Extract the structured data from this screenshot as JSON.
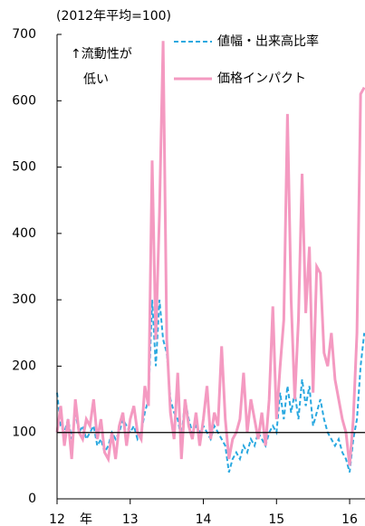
{
  "chart_data": {
    "type": "line",
    "subtitle": "(2012年平均=100)",
    "annotation": [
      "↑流動性が",
      "低い"
    ],
    "x_unit": "年",
    "x": [
      12.0,
      12.05,
      12.1,
      12.15,
      12.2,
      12.25,
      12.3,
      12.35,
      12.4,
      12.45,
      12.5,
      12.55,
      12.6,
      12.65,
      12.7,
      12.75,
      12.8,
      12.85,
      12.9,
      12.95,
      13.0,
      13.05,
      13.1,
      13.15,
      13.2,
      13.25,
      13.3,
      13.35,
      13.4,
      13.45,
      13.5,
      13.55,
      13.6,
      13.65,
      13.7,
      13.75,
      13.8,
      13.85,
      13.9,
      13.95,
      14.0,
      14.05,
      14.1,
      14.15,
      14.2,
      14.25,
      14.3,
      14.35,
      14.4,
      14.45,
      14.5,
      14.55,
      14.6,
      14.65,
      14.7,
      14.75,
      14.8,
      14.85,
      14.9,
      14.95,
      15.0,
      15.05,
      15.1,
      15.15,
      15.2,
      15.25,
      15.3,
      15.35,
      15.4,
      15.45,
      15.5,
      15.55,
      15.6,
      15.65,
      15.7,
      15.75,
      15.8,
      15.85,
      15.9,
      15.95,
      16.0,
      16.05,
      16.1,
      16.15,
      16.2
    ],
    "series": [
      {
        "name": "値幅・出来高比率",
        "color": "#29a8e0",
        "dashed": true,
        "values": [
          160,
          110,
          100,
          120,
          90,
          130,
          100,
          110,
          90,
          100,
          110,
          80,
          90,
          70,
          80,
          100,
          90,
          100,
          120,
          110,
          100,
          110,
          90,
          100,
          130,
          150,
          300,
          200,
          300,
          240,
          220,
          150,
          130,
          120,
          90,
          150,
          120,
          100,
          110,
          100,
          110,
          100,
          90,
          110,
          100,
          90,
          80,
          40,
          60,
          70,
          60,
          80,
          70,
          90,
          80,
          100,
          90,
          80,
          100,
          110,
          100,
          160,
          120,
          170,
          130,
          160,
          120,
          180,
          140,
          170,
          110,
          130,
          150,
          120,
          100,
          90,
          80,
          90,
          70,
          60,
          40,
          90,
          120,
          200,
          250
        ]
      },
      {
        "name": "価格インパクト",
        "color": "#f49ac1",
        "dashed": false,
        "values": [
          100,
          140,
          80,
          120,
          60,
          150,
          100,
          90,
          120,
          110,
          150,
          90,
          120,
          70,
          60,
          100,
          60,
          110,
          130,
          80,
          120,
          140,
          100,
          90,
          170,
          140,
          510,
          240,
          430,
          690,
          240,
          130,
          90,
          190,
          60,
          150,
          110,
          90,
          130,
          80,
          120,
          170,
          90,
          130,
          110,
          230,
          120,
          60,
          90,
          100,
          120,
          190,
          100,
          150,
          120,
          90,
          130,
          80,
          150,
          290,
          120,
          200,
          270,
          580,
          300,
          150,
          270,
          490,
          280,
          380,
          160,
          350,
          340,
          220,
          200,
          250,
          180,
          150,
          120,
          100,
          50,
          120,
          250,
          610,
          620
        ]
      }
    ],
    "ref_line": 100,
    "xlim": [
      12,
      16.21
    ],
    "xticks": [
      12,
      13,
      14,
      15,
      16
    ],
    "ylim": [
      0,
      700
    ],
    "yticks": [
      0,
      100,
      200,
      300,
      400,
      500,
      600,
      700
    ]
  }
}
